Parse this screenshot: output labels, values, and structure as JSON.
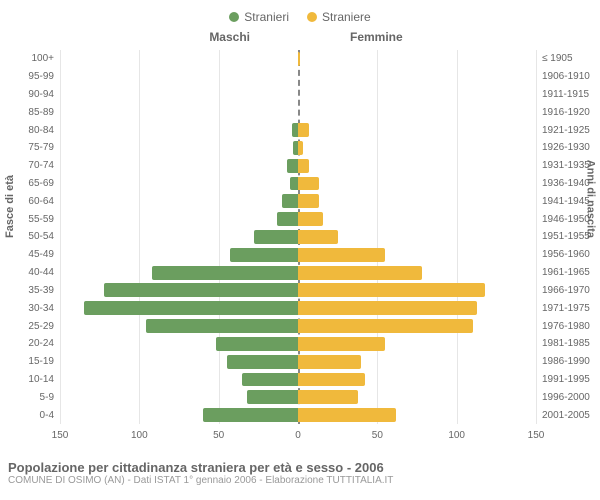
{
  "legend": {
    "male": {
      "label": "Stranieri",
      "color": "#6b9e5f"
    },
    "female": {
      "label": "Straniere",
      "color": "#f0b93c"
    }
  },
  "headers": {
    "left": "Maschi",
    "right": "Femmine"
  },
  "y_axes": {
    "left_title": "Fasce di età",
    "right_title": "Anni di nascita"
  },
  "categories_left": [
    "100+",
    "95-99",
    "90-94",
    "85-89",
    "80-84",
    "75-79",
    "70-74",
    "65-69",
    "60-64",
    "55-59",
    "50-54",
    "45-49",
    "40-44",
    "35-39",
    "30-34",
    "25-29",
    "20-24",
    "15-19",
    "10-14",
    "5-9",
    "0-4"
  ],
  "categories_right": [
    "≤ 1905",
    "1906-1910",
    "1911-1915",
    "1916-1920",
    "1921-1925",
    "1926-1930",
    "1931-1935",
    "1936-1940",
    "1941-1945",
    "1946-1950",
    "1951-1955",
    "1956-1960",
    "1961-1965",
    "1966-1970",
    "1971-1975",
    "1976-1980",
    "1981-1985",
    "1986-1990",
    "1991-1995",
    "1996-2000",
    "2001-2005"
  ],
  "male_values": [
    0,
    0,
    0,
    0,
    4,
    3,
    7,
    5,
    10,
    13,
    28,
    43,
    92,
    122,
    135,
    96,
    52,
    45,
    35,
    32,
    60
  ],
  "female_values": [
    1,
    0,
    0,
    0,
    7,
    3,
    7,
    13,
    13,
    16,
    25,
    55,
    78,
    118,
    113,
    110,
    55,
    40,
    42,
    38,
    62
  ],
  "x_axis": {
    "max": 150,
    "ticks": [
      150,
      100,
      50,
      0,
      50,
      100,
      150
    ]
  },
  "grid_color": "#e6e6e6",
  "center_color": "#888888",
  "title": "Popolazione per cittadinanza straniera per età e sesso - 2006",
  "subtitle": "COMUNE DI OSIMO (AN) - Dati ISTAT 1° gennaio 2006 - Elaborazione TUTTITALIA.IT"
}
